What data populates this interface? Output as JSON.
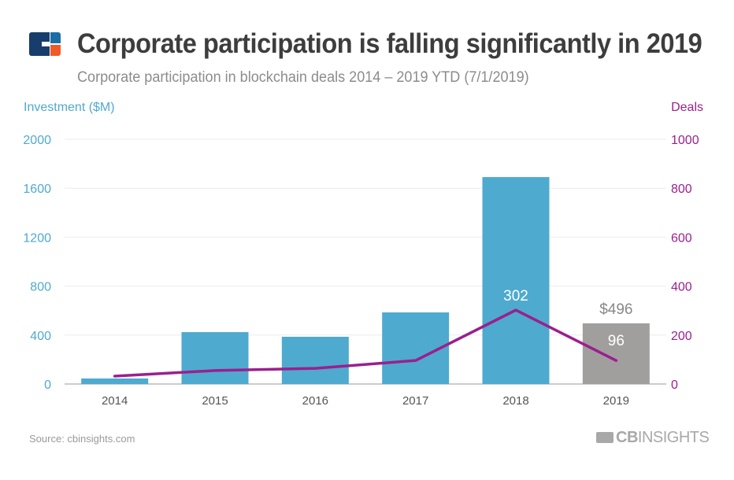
{
  "header": {
    "title": "Corporate participation is falling significantly in 2019",
    "subtitle": "Corporate participation in blockchain deals 2014 – 2019 YTD (7/1/2019)"
  },
  "footer": {
    "source": "Source: cbinsights.com",
    "brand": "CBINSIGHTS",
    "brand_bold": "CB",
    "brand_rest": "INSIGHTS"
  },
  "colors": {
    "bar": "#4eaacf",
    "bar_ytd": "#a19f9d",
    "line": "#9b1f8f",
    "left_axis": "#4eaacf",
    "right_axis": "#9b1f8f"
  },
  "chart_data": {
    "type": "bar+line",
    "title": "Corporate participation is falling significantly in 2019",
    "categories": [
      "2014",
      "2015",
      "2016",
      "2017",
      "2018",
      "2019"
    ],
    "series": [
      {
        "name": "Investment ($M)",
        "type": "bar",
        "axis": "left",
        "values": [
          45,
          424,
          386,
          585,
          1691,
          496
        ]
      },
      {
        "name": "Deals",
        "type": "line",
        "axis": "right",
        "values": [
          32,
          55,
          64,
          96,
          302,
          96
        ]
      }
    ],
    "ylabel_left": "Investment ($M)",
    "ylabel_right": "Deals",
    "ylim_left": [
      0,
      2000
    ],
    "ylim_right": [
      0,
      1000
    ],
    "left_ticks": [
      "0",
      "400",
      "800",
      "1200",
      "1600",
      "2000"
    ],
    "right_ticks": [
      "0",
      "200",
      "400",
      "600",
      "800",
      "1000"
    ],
    "data_labels": {
      "bar_2019": "$496",
      "deals_2018": "302",
      "deals_2019": "96"
    },
    "grid": true,
    "legend": "none"
  }
}
